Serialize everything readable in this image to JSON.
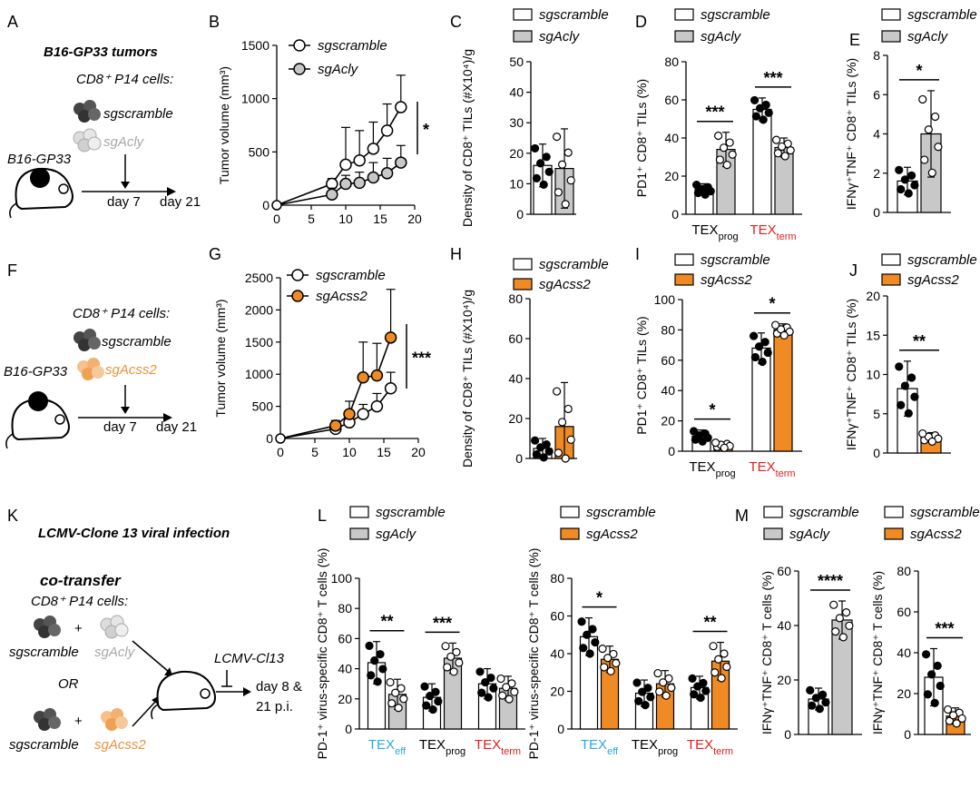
{
  "colors": {
    "ctrl": "#ffffff",
    "acly": "#c8c8c8",
    "acss2": "#f08a24",
    "acly_text": "#a8a8a8",
    "acss2_text": "#e8913a",
    "tex_eff": "#29a8e0",
    "tex_term": "#e02020",
    "black": "#000000"
  },
  "panels": {
    "A": {
      "letter": "A",
      "title": "B16-GP33 tumors",
      "cells": "CD8⁺ P14 cells:",
      "group1": "sgscramble",
      "group2": "sgAcly",
      "model": "B16-GP33",
      "day1": "day 7",
      "day2": "day 21"
    },
    "F": {
      "letter": "F",
      "cells": "CD8⁺ P14 cells:",
      "group1": "sgscramble",
      "group2": "sgAcss2",
      "model": "B16-GP33",
      "day1": "day 7",
      "day2": "day 21"
    },
    "K": {
      "letter": "K",
      "title": "LCMV-Clone 13 viral infection",
      "cotransfer": "co-transfer",
      "cells": "CD8⁺ P14 cells:",
      "plus": "+",
      "or": "OR",
      "group1": "sgscramble",
      "group2": "sgAcly",
      "group3": "sgscramble",
      "group4": "sgAcss2",
      "virus": "LCMV-Cl13",
      "day1": "day 8 &",
      "day2": "21 p.i."
    }
  },
  "chart_data": [
    {
      "id": "B",
      "letter": "B",
      "type": "line",
      "ylabel": "Tumor volume (mm³)",
      "yticks": [
        "0",
        "500",
        "1000",
        "1500"
      ],
      "xticks": [
        "0",
        "5",
        "10",
        "15",
        "20"
      ],
      "ylim": [
        0,
        1500
      ],
      "xlim": [
        0,
        20
      ],
      "legend": [
        "sgscramble",
        "sgAcly"
      ],
      "significance": "*",
      "series": [
        {
          "name": "sgscramble",
          "x": [
            8,
            10,
            12,
            14,
            16,
            18
          ],
          "y": [
            200,
            380,
            420,
            530,
            700,
            920
          ],
          "err": [
            50,
            350,
            280,
            250,
            250,
            300
          ]
        },
        {
          "name": "sgAcly",
          "x": [
            8,
            10,
            12,
            14,
            16,
            18
          ],
          "y": [
            100,
            200,
            210,
            260,
            300,
            400
          ],
          "err": [
            60,
            80,
            100,
            140,
            140,
            160
          ]
        }
      ]
    },
    {
      "id": "C",
      "letter": "C",
      "type": "bar",
      "ylabel": "Density of CD8⁺ TILs (#X10⁴)/g",
      "yticks": [
        "0",
        "10",
        "20",
        "30",
        "40",
        "50"
      ],
      "ylim": [
        0,
        50
      ],
      "legend": [
        "sgscramble",
        "sgAcly"
      ],
      "groups": [
        {
          "category": "",
          "bars": [
            {
              "series": "sgscramble",
              "value": 16,
              "err": 7
            },
            {
              "series": "sgAcly",
              "value": 15,
              "err": 13
            }
          ]
        }
      ]
    },
    {
      "id": "D",
      "letter": "D",
      "type": "bar",
      "ylabel": "PD1⁺ CD8⁺ TILs (%)",
      "yticks": [
        "0",
        "20",
        "40",
        "60",
        "80"
      ],
      "ylim": [
        0,
        80
      ],
      "legend": [
        "sgscramble",
        "sgAcly"
      ],
      "categories": [
        "TEXprog",
        "TEXterm"
      ],
      "groups": [
        {
          "category": "TEXprog",
          "significance": "***",
          "bars": [
            {
              "series": "sgscramble",
              "value": 13,
              "err": 3
            },
            {
              "series": "sgAcly",
              "value": 34,
              "err": 9
            }
          ]
        },
        {
          "category": "TEXterm",
          "significance": "***",
          "bars": [
            {
              "series": "sgscramble",
              "value": 55,
              "err": 6
            },
            {
              "series": "sgAcly",
              "value": 35,
              "err": 5
            }
          ]
        }
      ]
    },
    {
      "id": "E",
      "letter": "E",
      "type": "bar",
      "ylabel": "IFNγ⁺TNF⁺ CD8⁺ TILs (%)",
      "yticks": [
        "0",
        "2",
        "4",
        "6",
        "8"
      ],
      "ylim": [
        0,
        8
      ],
      "legend": [
        "sgscramble",
        "sgAcly"
      ],
      "groups": [
        {
          "category": "",
          "significance": "*",
          "bars": [
            {
              "series": "sgscramble",
              "value": 1.6,
              "err": 0.7
            },
            {
              "series": "sgAcly",
              "value": 4.0,
              "err": 2.2
            }
          ]
        }
      ]
    },
    {
      "id": "G",
      "letter": "G",
      "type": "line",
      "ylabel": "Tumor volume (mm³)",
      "yticks": [
        "0",
        "500",
        "1000",
        "1500",
        "2000",
        "2500"
      ],
      "xticks": [
        "0",
        "5",
        "10",
        "15",
        "20"
      ],
      "ylim": [
        0,
        2500
      ],
      "xlim": [
        0,
        20
      ],
      "legend": [
        "sgscramble",
        "sgAcss2"
      ],
      "significance": "***",
      "series": [
        {
          "name": "sgscramble",
          "x": [
            8,
            10,
            12,
            14,
            16
          ],
          "y": [
            150,
            250,
            380,
            500,
            780
          ],
          "err": [
            50,
            100,
            150,
            200,
            250
          ]
        },
        {
          "name": "sgAcss2",
          "x": [
            8,
            10,
            12,
            14,
            16
          ],
          "y": [
            200,
            380,
            950,
            980,
            1570
          ],
          "err": [
            80,
            200,
            550,
            500,
            750
          ]
        }
      ]
    },
    {
      "id": "H",
      "letter": "H",
      "type": "bar",
      "ylabel": "Density of CD8⁺ TILs (#X10⁴)/g",
      "yticks": [
        "0",
        "20",
        "40",
        "60",
        "80"
      ],
      "ylim": [
        0,
        80
      ],
      "legend": [
        "sgscramble",
        "sgAcss2"
      ],
      "groups": [
        {
          "category": "",
          "bars": [
            {
              "series": "sgscramble",
              "value": 5,
              "err": 5
            },
            {
              "series": "sgAcss2",
              "value": 16,
              "err": 22
            }
          ]
        }
      ]
    },
    {
      "id": "I",
      "letter": "I",
      "type": "bar",
      "ylabel": "PD1⁺ CD8⁺ TILs (%)",
      "yticks": [
        "0",
        "20",
        "40",
        "60",
        "80",
        "100"
      ],
      "ylim": [
        0,
        100
      ],
      "legend": [
        "sgscramble",
        "sgAcss2"
      ],
      "categories": [
        "TEXprog",
        "TEXterm"
      ],
      "groups": [
        {
          "category": "TEXprog",
          "significance": "*",
          "bars": [
            {
              "series": "sgscramble",
              "value": 10,
              "err": 4
            },
            {
              "series": "sgAcss2",
              "value": 4,
              "err": 2
            }
          ]
        },
        {
          "category": "TEXterm",
          "significance": "*",
          "bars": [
            {
              "series": "sgscramble",
              "value": 68,
              "err": 10
            },
            {
              "series": "sgAcss2",
              "value": 80,
              "err": 4
            }
          ]
        }
      ]
    },
    {
      "id": "J",
      "letter": "J",
      "type": "bar",
      "ylabel": "IFNγ⁺TNF⁺ CD8⁺ TILs (%)",
      "yticks": [
        "0",
        "5",
        "10",
        "15",
        "20"
      ],
      "ylim": [
        0,
        20
      ],
      "legend": [
        "sgscramble",
        "sgAcss2"
      ],
      "groups": [
        {
          "category": "",
          "significance": "**",
          "bars": [
            {
              "series": "sgscramble",
              "value": 8.2,
              "err": 3.5
            },
            {
              "series": "sgAcss2",
              "value": 2.0,
              "err": 0.6
            }
          ]
        }
      ]
    },
    {
      "id": "L1",
      "letter": "L",
      "type": "bar",
      "ylabel": "PD-1⁺ virus-specific CD8⁺ T cells (%)",
      "yticks": [
        "0",
        "20",
        "40",
        "60",
        "80",
        "100"
      ],
      "ylim": [
        0,
        100
      ],
      "legend": [
        "sgscramble",
        "sgAcly"
      ],
      "categories": [
        "TEXeff",
        "TEXprog",
        "TEXterm"
      ],
      "groups": [
        {
          "category": "TEXeff",
          "significance": "**",
          "bars": [
            {
              "series": "sgscramble",
              "value": 44,
              "err": 14
            },
            {
              "series": "sgAcly",
              "value": 23,
              "err": 10
            }
          ]
        },
        {
          "category": "TEXprog",
          "significance": "***",
          "bars": [
            {
              "series": "sgscramble",
              "value": 21,
              "err": 9
            },
            {
              "series": "sgAcly",
              "value": 47,
              "err": 10
            }
          ]
        },
        {
          "category": "TEXterm",
          "bars": [
            {
              "series": "sgscramble",
              "value": 30,
              "err": 10
            },
            {
              "series": "sgAcly",
              "value": 27,
              "err": 8
            }
          ]
        }
      ]
    },
    {
      "id": "L2",
      "letter": "",
      "type": "bar",
      "ylabel": "PD-1⁺ virus-specific CD8⁺ T cells (%)",
      "yticks": [
        "0",
        "20",
        "40",
        "60",
        "80"
      ],
      "ylim": [
        0,
        80
      ],
      "legend": [
        "sgscramble",
        "sgAcss2"
      ],
      "categories": [
        "TEXeff",
        "TEXprog",
        "TEXterm"
      ],
      "groups": [
        {
          "category": "TEXeff",
          "significance": "*",
          "bars": [
            {
              "series": "sgscramble",
              "value": 49,
              "err": 10
            },
            {
              "series": "sgAcss2",
              "value": 37,
              "err": 7
            }
          ]
        },
        {
          "category": "TEXprog",
          "bars": [
            {
              "series": "sgscramble",
              "value": 19,
              "err": 7
            },
            {
              "series": "sgAcss2",
              "value": 24,
              "err": 7
            }
          ]
        },
        {
          "category": "TEXterm",
          "significance": "**",
          "bars": [
            {
              "series": "sgscramble",
              "value": 22,
              "err": 6
            },
            {
              "series": "sgAcss2",
              "value": 36,
              "err": 10
            }
          ]
        }
      ]
    },
    {
      "id": "M1",
      "letter": "M",
      "type": "bar",
      "ylabel": "IFNγ⁺TNF⁺ CD8⁺ T cells (%)",
      "yticks": [
        "0",
        "20",
        "40",
        "60"
      ],
      "ylim": [
        0,
        60
      ],
      "legend": [
        "sgscramble",
        "sgAcly"
      ],
      "groups": [
        {
          "category": "",
          "significance": "****",
          "bars": [
            {
              "series": "sgscramble",
              "value": 13,
              "err": 4
            },
            {
              "series": "sgAcly",
              "value": 42,
              "err": 7
            }
          ]
        }
      ]
    },
    {
      "id": "M2",
      "letter": "",
      "type": "bar",
      "ylabel": "IFNγ⁺TNF⁺ CD8⁺ T cells (%)",
      "yticks": [
        "0",
        "20",
        "40",
        "60",
        "80"
      ],
      "ylim": [
        0,
        80
      ],
      "legend": [
        "sgscramble",
        "sgAcss2"
      ],
      "groups": [
        {
          "category": "",
          "significance": "***",
          "bars": [
            {
              "series": "sgscramble",
              "value": 28,
              "err": 14
            },
            {
              "series": "sgAcss2",
              "value": 9,
              "err": 4
            }
          ]
        }
      ]
    }
  ]
}
